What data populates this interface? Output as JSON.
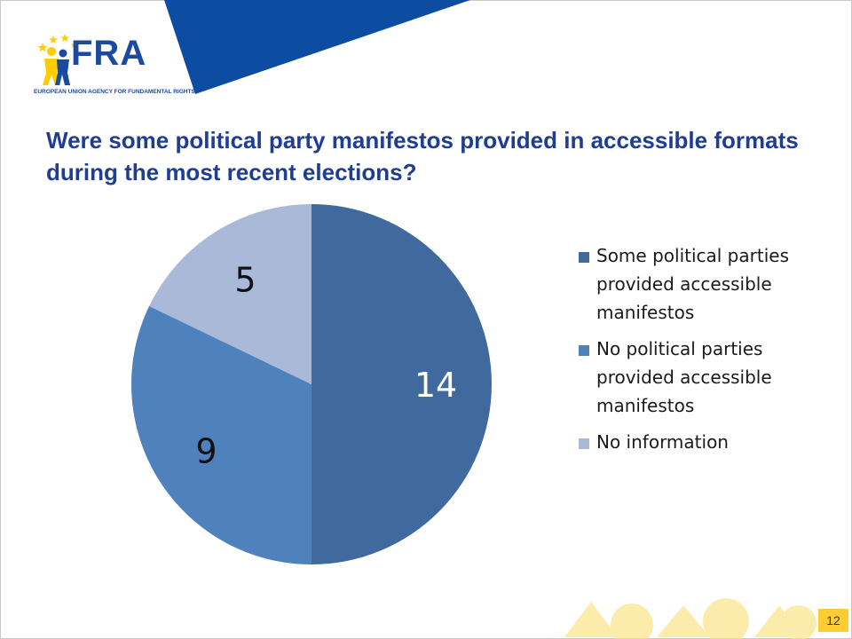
{
  "header": {
    "logo_text": "FRA",
    "logo_subtitle": "EUROPEAN UNION AGENCY FOR FUNDAMENTAL RIGHTS"
  },
  "colors": {
    "brand_blue": "#1f3e93",
    "banner_blue": "#0c4da2",
    "star_yellow": "#ffcc00",
    "footer_yellow": "#fbe58a"
  },
  "chart_data": {
    "type": "pie",
    "title": "Were some political party manifestos provided in accessible formats during the most recent elections?",
    "categories": [
      "Some political parties provided accessible manifestos",
      "No political parties provided accessible manifestos",
      "No information"
    ],
    "values": [
      14,
      9,
      5
    ],
    "colors": [
      "#406a9e",
      "#4f81bd",
      "#a9b9d7"
    ],
    "legend": "right",
    "start_angle": "12 o'clock",
    "direction": "clockwise"
  },
  "footer": {
    "slide_number": "12"
  }
}
